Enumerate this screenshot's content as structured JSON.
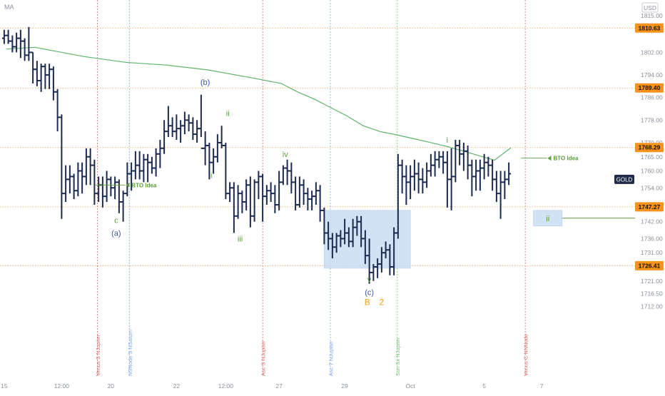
{
  "header": {
    "indicator_label": "MA",
    "currency_label": "USD"
  },
  "symbol_badge": "GOLD",
  "colors": {
    "bars": "#1b2a4e",
    "ma_line": "#5fb36a",
    "orange_line": "#f0a04b",
    "orange_badge": "#f7931a",
    "red_vline": "#d46a6a",
    "blue_vline": "#7fa7e0",
    "green_vline": "#7dc77d",
    "box_fill": "#c7dbf3",
    "wave_green": "#5a9e3c",
    "wave_blue": "#3b5a99",
    "abc_orange": "#f29d1e",
    "axis_text": "#8a8f99"
  },
  "chart_data": {
    "type": "ohlc-bar",
    "symbol": "GOLD",
    "y_axis": {
      "range": [
        1708,
        1818
      ],
      "ticks": [
        1815.0,
        1802.0,
        1794.0,
        1786.0,
        1778.0,
        1770.0,
        1765.0,
        1760.0,
        1754.0,
        1742.0,
        1736.0,
        1731.0,
        1721.0,
        1716.5,
        1712.0
      ]
    },
    "x_axis": {
      "tick_labels": [
        {
          "slot": 0.5,
          "label": "15"
        },
        {
          "slot": 14.5,
          "label": "12:00"
        },
        {
          "slot": 26.5,
          "label": "20"
        },
        {
          "slot": 42.5,
          "label": "22"
        },
        {
          "slot": 54.5,
          "label": "12:00"
        },
        {
          "slot": 67.5,
          "label": "27"
        },
        {
          "slot": 83.5,
          "label": "29"
        },
        {
          "slot": 99.5,
          "label": "Oct"
        },
        {
          "slot": 117.5,
          "label": "5"
        },
        {
          "slot": 131.5,
          "label": "7"
        }
      ]
    },
    "price_levels": [
      {
        "value": 1810.63,
        "label": "1810.63"
      },
      {
        "value": 1789.4,
        "label": "1789.40"
      },
      {
        "value": 1768.29,
        "label": "1768.29"
      },
      {
        "value": 1747.27,
        "label": "1747.27"
      },
      {
        "value": 1726.41,
        "label": "1726.41"
      }
    ],
    "current_price_tag": {
      "value": 1757.0,
      "label": "GOLD"
    },
    "event_lines": [
      {
        "slot": 23.2,
        "label": "Venus S NJupiter",
        "color": "red"
      },
      {
        "slot": 31.0,
        "label": "NSNode S NSaturn",
        "color": "blue"
      },
      {
        "slot": 63.5,
        "label": "Asc S NJupiter",
        "color": "red"
      },
      {
        "slot": 80.0,
        "label": "Asc T NJupiter",
        "color": "blue"
      },
      {
        "slot": 96.3,
        "label": "Sun Sx NJupiter",
        "color": "green"
      },
      {
        "slot": 127.5,
        "label": "Venus C NNNode",
        "color": "red"
      }
    ],
    "moving_average": {
      "x": [
        1,
        8,
        20,
        30,
        40,
        50,
        60,
        68,
        72,
        76,
        80,
        84,
        88,
        92,
        96,
        100,
        104,
        108,
        112,
        116,
        120,
        124
      ],
      "y": [
        1803.2,
        1803.8,
        1800.5,
        1798.5,
        1797.5,
        1795.8,
        1793.2,
        1791.0,
        1788.0,
        1785.5,
        1782.5,
        1779.5,
        1776.0,
        1774.0,
        1772.8,
        1771.5,
        1770.2,
        1768.8,
        1767.2,
        1765.5,
        1763.8,
        1768.2
      ]
    },
    "bars": [
      [
        1807,
        1810,
        1805,
        1808
      ],
      [
        1808,
        1810,
        1805,
        1806
      ],
      [
        1806,
        1808,
        1802,
        1804
      ],
      [
        1804,
        1809,
        1802,
        1807
      ],
      [
        1807,
        1810,
        1800,
        1806
      ],
      [
        1806,
        1807,
        1799,
        1801
      ],
      [
        1801,
        1811,
        1799,
        1802
      ],
      [
        1802,
        1802,
        1791,
        1796
      ],
      [
        1796,
        1799,
        1790,
        1792
      ],
      [
        1792,
        1798,
        1788,
        1797
      ],
      [
        1797,
        1798,
        1789,
        1794
      ],
      [
        1794,
        1798,
        1789,
        1796
      ],
      [
        1796,
        1797,
        1785,
        1788
      ],
      [
        1788,
        1789,
        1774,
        1779
      ],
      [
        1779,
        1780,
        1743,
        1752
      ],
      [
        1752,
        1762,
        1749,
        1757
      ],
      [
        1757,
        1762,
        1752,
        1758
      ],
      [
        1758,
        1759,
        1750,
        1753
      ],
      [
        1753,
        1763,
        1751,
        1760
      ],
      [
        1760,
        1763,
        1752,
        1758
      ],
      [
        1758,
        1768,
        1755,
        1765
      ],
      [
        1765,
        1768,
        1755,
        1762
      ],
      [
        1762,
        1764,
        1748,
        1752
      ],
      [
        1752,
        1758,
        1749,
        1755
      ],
      [
        1755,
        1758,
        1747,
        1751
      ],
      [
        1751,
        1760,
        1749,
        1757
      ],
      [
        1757,
        1758,
        1751,
        1754
      ],
      [
        1754,
        1758,
        1750,
        1756
      ],
      [
        1756,
        1757,
        1745,
        1749
      ],
      [
        1749,
        1753,
        1742,
        1752
      ],
      [
        1752,
        1763,
        1751,
        1759
      ],
      [
        1759,
        1763,
        1753,
        1760
      ],
      [
        1760,
        1767,
        1757,
        1762
      ],
      [
        1762,
        1767,
        1757,
        1760
      ],
      [
        1760,
        1766,
        1756,
        1764
      ],
      [
        1764,
        1766,
        1756,
        1763
      ],
      [
        1763,
        1765,
        1759,
        1761
      ],
      [
        1761,
        1768,
        1758,
        1766
      ],
      [
        1766,
        1771,
        1761,
        1768
      ],
      [
        1768,
        1778,
        1766,
        1774
      ],
      [
        1774,
        1783,
        1772,
        1776
      ],
      [
        1776,
        1779,
        1772,
        1774
      ],
      [
        1774,
        1780,
        1771,
        1775
      ],
      [
        1775,
        1778,
        1770,
        1776
      ],
      [
        1776,
        1781,
        1773,
        1778
      ],
      [
        1778,
        1780,
        1774,
        1777
      ],
      [
        1777,
        1779,
        1771,
        1773
      ],
      [
        1773,
        1778,
        1770,
        1775
      ],
      [
        1775,
        1787,
        1772,
        1768
      ],
      [
        1768,
        1774,
        1762,
        1769
      ],
      [
        1769,
        1770,
        1757,
        1763
      ],
      [
        1763,
        1768,
        1759,
        1765
      ],
      [
        1765,
        1773,
        1763,
        1770
      ],
      [
        1770,
        1776,
        1768,
        1769
      ],
      [
        1769,
        1770,
        1750,
        1752
      ],
      [
        1752,
        1756,
        1749,
        1754
      ],
      [
        1754,
        1756,
        1738,
        1744
      ],
      [
        1744,
        1755,
        1743,
        1752
      ],
      [
        1752,
        1753,
        1745,
        1749
      ],
      [
        1749,
        1757,
        1746,
        1755
      ],
      [
        1755,
        1758,
        1740,
        1744
      ],
      [
        1744,
        1757,
        1742,
        1756
      ],
      [
        1756,
        1760,
        1750,
        1758
      ],
      [
        1758,
        1759,
        1742,
        1751
      ],
      [
        1751,
        1755,
        1748,
        1753
      ],
      [
        1753,
        1756,
        1749,
        1752
      ],
      [
        1752,
        1755,
        1745,
        1748
      ],
      [
        1748,
        1760,
        1746,
        1756
      ],
      [
        1756,
        1762,
        1755,
        1761
      ],
      [
        1761,
        1764,
        1755,
        1760
      ],
      [
        1760,
        1763,
        1752,
        1756
      ],
      [
        1756,
        1758,
        1746,
        1748
      ],
      [
        1748,
        1758,
        1747,
        1755
      ],
      [
        1755,
        1757,
        1748,
        1752
      ],
      [
        1752,
        1754,
        1746,
        1750
      ],
      [
        1750,
        1753,
        1746,
        1751
      ],
      [
        1751,
        1756,
        1748,
        1753
      ],
      [
        1753,
        1755,
        1742,
        1746
      ],
      [
        1746,
        1747,
        1734,
        1738
      ],
      [
        1738,
        1742,
        1732,
        1736
      ],
      [
        1736,
        1738,
        1729,
        1733
      ],
      [
        1733,
        1738,
        1731,
        1737
      ],
      [
        1737,
        1739,
        1733,
        1736
      ],
      [
        1736,
        1743,
        1734,
        1738
      ],
      [
        1738,
        1740,
        1733,
        1735
      ],
      [
        1735,
        1743,
        1733,
        1740
      ],
      [
        1740,
        1744,
        1737,
        1742
      ],
      [
        1742,
        1744,
        1733,
        1736
      ],
      [
        1736,
        1739,
        1727,
        1730
      ],
      [
        1730,
        1736,
        1720,
        1724
      ],
      [
        1724,
        1727,
        1721,
        1726
      ],
      [
        1726,
        1729,
        1722,
        1727
      ],
      [
        1727,
        1733,
        1724,
        1731
      ],
      [
        1731,
        1735,
        1729,
        1732
      ],
      [
        1732,
        1734,
        1723,
        1726
      ],
      [
        1726,
        1740,
        1723,
        1738
      ],
      [
        1738,
        1766,
        1736,
        1762
      ],
      [
        1762,
        1764,
        1752,
        1758
      ],
      [
        1758,
        1762,
        1748,
        1756
      ],
      [
        1756,
        1762,
        1750,
        1758
      ],
      [
        1758,
        1764,
        1753,
        1759
      ],
      [
        1759,
        1763,
        1752,
        1757
      ],
      [
        1757,
        1761,
        1752,
        1756
      ],
      [
        1756,
        1763,
        1754,
        1760
      ],
      [
        1760,
        1766,
        1758,
        1762
      ],
      [
        1762,
        1767,
        1758,
        1764
      ],
      [
        1764,
        1767,
        1761,
        1765
      ],
      [
        1765,
        1767,
        1759,
        1763
      ],
      [
        1763,
        1767,
        1747,
        1757
      ],
      [
        1757,
        1768,
        1746,
        1758
      ],
      [
        1758,
        1771,
        1756,
        1769
      ],
      [
        1769,
        1771,
        1762,
        1766
      ],
      [
        1766,
        1770,
        1760,
        1767
      ],
      [
        1767,
        1769,
        1757,
        1762
      ],
      [
        1762,
        1764,
        1751,
        1758
      ],
      [
        1758,
        1764,
        1753,
        1760
      ],
      [
        1760,
        1764,
        1753,
        1761
      ],
      [
        1761,
        1766,
        1757,
        1763
      ],
      [
        1763,
        1765,
        1758,
        1762
      ],
      [
        1762,
        1764,
        1753,
        1757
      ],
      [
        1757,
        1760,
        1749,
        1752
      ],
      [
        1752,
        1760,
        1743,
        1756
      ],
      [
        1756,
        1760,
        1750,
        1757
      ],
      [
        1757,
        1763,
        1755,
        1759
      ]
    ],
    "zones": [
      {
        "label": "",
        "x_from": 78.5,
        "x_to": 99.5,
        "y_from": 1725.5,
        "y_to": 1746.0
      },
      {
        "label": "ii",
        "x_from": 129.5,
        "x_to": 136.5,
        "y_from": 1740.5,
        "y_to": 1746.0
      }
    ],
    "annotations": [
      {
        "text": "BTO Idea",
        "x": 31.2,
        "y": 1755.0,
        "color": "green",
        "arrow": "left",
        "line_from": 22.5
      },
      {
        "text": "BTO Idea",
        "x": 134.0,
        "y": 1764.5,
        "color": "green",
        "arrow": "left",
        "line_from": 126.5
      },
      {
        "text": "(b)",
        "x": 49.5,
        "y": 1790.5,
        "color": "blue"
      },
      {
        "text": "ii",
        "x": 55.0,
        "y": 1779.5,
        "color": "green"
      },
      {
        "text": "i",
        "x": 51.0,
        "y": 1757.5,
        "color": "green"
      },
      {
        "text": "c",
        "x": 27.8,
        "y": 1741.5,
        "color": "green"
      },
      {
        "text": "(a)",
        "x": 27.8,
        "y": 1737.0,
        "color": "blue"
      },
      {
        "text": "iv",
        "x": 69.0,
        "y": 1765.0,
        "color": "green"
      },
      {
        "text": "iii",
        "x": 58.0,
        "y": 1735.0,
        "color": "green"
      },
      {
        "text": "v",
        "x": 89.5,
        "y": 1720.5,
        "color": "green"
      },
      {
        "text": "(c)",
        "x": 89.5,
        "y": 1716.0,
        "color": "blue"
      },
      {
        "text": "B",
        "x": 89.0,
        "y": 1712.5,
        "color": "orange"
      },
      {
        "text": "2",
        "x": 92.5,
        "y": 1712.5,
        "color": "orange"
      },
      {
        "text": "i",
        "x": 108.5,
        "y": 1770.0,
        "color": "green"
      }
    ]
  }
}
